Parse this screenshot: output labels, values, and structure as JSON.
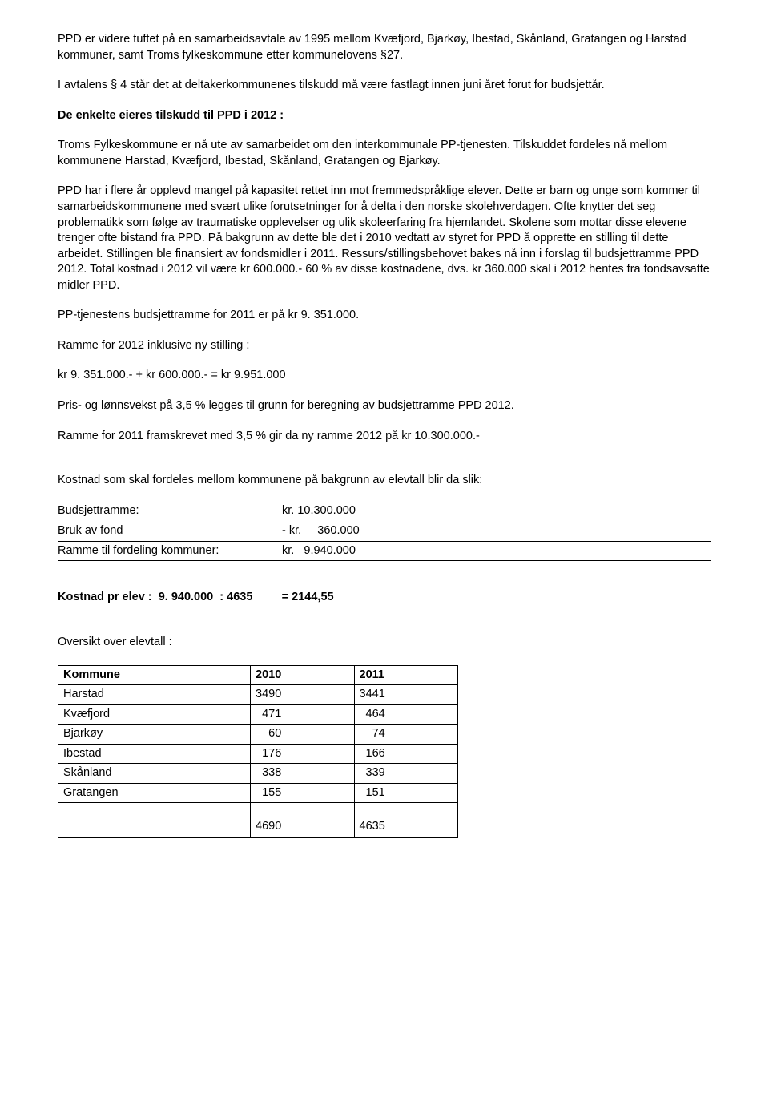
{
  "p1": "PPD er videre tuftet på en samarbeidsavtale av 1995 mellom Kvæfjord, Bjarkøy, Ibestad, Skånland, Gratangen og Harstad kommuner, samt Troms fylkeskommune etter kommunelovens §27.",
  "p2": "I avtalens § 4 står det at deltakerkommunenes tilskudd må være fastlagt innen juni året forut for budsjettår.",
  "h1": "De enkelte eieres tilskudd til PPD i 2012 :",
  "p3": "Troms Fylkeskommune er nå ute av samarbeidet om den interkommunale PP-tjenesten. Tilskuddet fordeles nå mellom kommunene Harstad, Kvæfjord, Ibestad, Skånland, Gratangen og Bjarkøy.",
  "p4": "PPD har i flere år opplevd mangel på kapasitet rettet inn mot fremmedspråklige elever. Dette er barn og unge som kommer til samarbeidskommunene med svært ulike forutsetninger for å delta i den norske skolehverdagen. Ofte knytter det seg problematikk som følge av traumatiske opplevelser og ulik skoleerfaring fra hjemlandet.  Skolene som mottar disse elevene trenger ofte bistand fra PPD.  På bakgrunn av dette ble det i 2010 vedtatt av styret for PPD å opprette en stilling til dette arbeidet.  Stillingen ble finansiert av fondsmidler i 2011. Ressurs/stillingsbehovet bakes nå inn i forslag til budsjettramme PPD 2012. Total kostnad i 2012 vil være kr 600.000.-   60 % av disse kostnadene, dvs.  kr 360.000 skal i 2012  hentes fra fondsavsatte midler PPD.",
  "p5": "PP-tjenestens budsjettramme  for 2011 er på kr  9. 351.000.",
  "p6": "Ramme for 2012 inklusive ny stilling :",
  "p7": "kr  9. 351.000.-  + kr 600.000.-    =    kr 9.951.000",
  "p8": "Pris- og lønnsvekst på 3,5 % legges til grunn for beregning av budsjettramme PPD 2012.",
  "p9": "Ramme for 2011 framskrevet med 3,5 % gir da ny ramme 2012 på kr 10.300.000.-",
  "p10": "Kostnad som skal fordeles mellom kommunene på bakgrunn av elevtall blir da slik:",
  "budget": {
    "rows": [
      {
        "label": "Budsjettramme:",
        "value": "kr. 10.300.000"
      },
      {
        "label": "Bruk av fond",
        "value": "- kr.     360.000"
      },
      {
        "label": "Ramme til fordeling kommuner:",
        "value": "kr.   9.940.000"
      }
    ]
  },
  "kostnad_line": "Kostnad pr elev :  9. 940.000  : 4635         = 2144,55",
  "oversikt_label": "Oversikt over elevtall :",
  "table": {
    "columns": [
      "Kommune",
      "2010",
      "2011"
    ],
    "rows": [
      [
        "Harstad",
        "3490",
        "3441"
      ],
      [
        "Kvæfjord",
        "  471",
        "  464"
      ],
      [
        "Bjarkøy",
        "    60",
        "    74"
      ],
      [
        "Ibestad",
        "  176",
        "  166"
      ],
      [
        "Skånland",
        "  338",
        "  339"
      ],
      [
        "Gratangen",
        "  155",
        "  151"
      ]
    ],
    "totals": [
      "",
      "4690",
      "4635"
    ]
  },
  "colors": {
    "text": "#000000",
    "background": "#ffffff",
    "border": "#000000"
  }
}
